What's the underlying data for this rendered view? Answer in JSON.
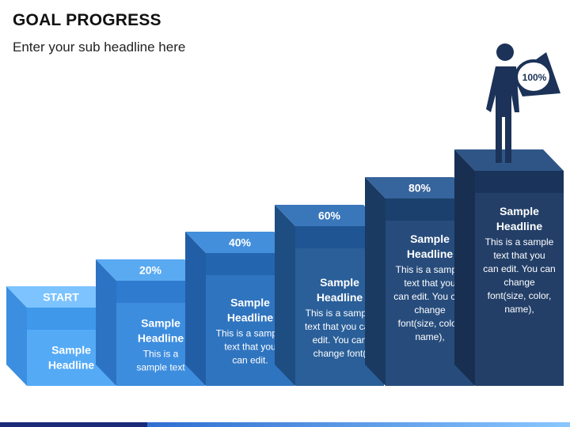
{
  "title": "GOAL PROGRESS",
  "subtitle": "Enter your sub headline here",
  "figure": {
    "label": "100%"
  },
  "steps": [
    {
      "label": "START",
      "headline": [
        "Sample",
        "Headline"
      ],
      "body": [],
      "colors": {
        "front": "#55aaf6",
        "top": "#7cc3ff",
        "side": "#3c8fe0",
        "band": "#3f98ea"
      }
    },
    {
      "label": "20%",
      "headline": [
        "Sample",
        "Headline"
      ],
      "body": [
        "This is a",
        "sample text"
      ],
      "colors": {
        "front": "#3d8ddf",
        "top": "#5aaaf2",
        "side": "#2c73c4",
        "band": "#2e7bd0"
      }
    },
    {
      "label": "40%",
      "headline": [
        "Sample",
        "Headline"
      ],
      "body": [
        "This is a sample",
        "text that you",
        "can edit."
      ],
      "colors": {
        "front": "#2f74bf",
        "top": "#438fdc",
        "side": "#225ea6",
        "band": "#2465b0"
      }
    },
    {
      "label": "60%",
      "headline": [
        "Sample",
        "Headline"
      ],
      "body": [
        "This is a sample",
        "text that you can",
        "edit. You can",
        "change font("
      ],
      "colors": {
        "front": "#2a5f99",
        "top": "#3a77ba",
        "side": "#1e4d82",
        "band": "#1f5593"
      }
    },
    {
      "label": "80%",
      "headline": [
        "Sample",
        "Headline"
      ],
      "body": [
        "This is a sample",
        "text that you",
        "can edit. You can",
        "change",
        "font(size, color,",
        "name),"
      ],
      "colors": {
        "front": "#274c7c",
        "top": "#36649c",
        "side": "#1b3a62",
        "band": "#1c406d"
      }
    },
    {
      "label": "",
      "headline": [
        "Sample",
        "Headline"
      ],
      "body": [
        "This is a sample",
        "text that you",
        "can edit. You can",
        "change",
        "font(size, color,",
        "name),"
      ],
      "colors": {
        "front": "#233f68",
        "top": "#2f5587",
        "side": "#182f52",
        "band": "#19335a"
      }
    }
  ]
}
